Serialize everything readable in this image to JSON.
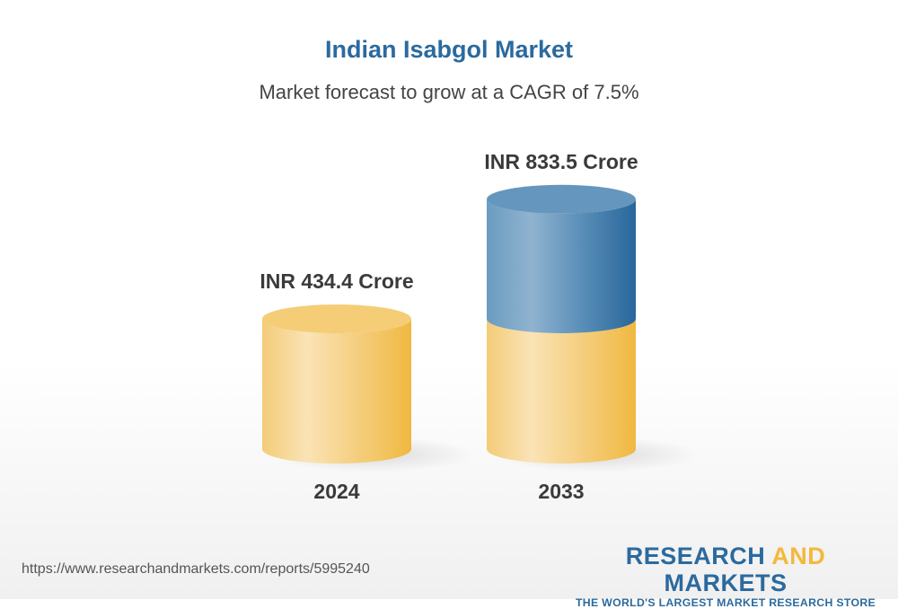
{
  "chart_data": {
    "type": "bar",
    "title": "Indian Isabgol Market",
    "subtitle": "Market forecast to grow at a CAGR of 7.5%",
    "categories": [
      "2024",
      "2033"
    ],
    "values": [
      434.4,
      833.5
    ],
    "data_labels": [
      "INR 434.4 Crore",
      "INR 833.5 Crore"
    ],
    "unit": "INR Crore",
    "style": "3d-cylinder",
    "colors": {
      "base": "#f2c45a",
      "growth": "#2b6a9e"
    }
  },
  "footer": {
    "url": "https://www.researchandmarkets.com/reports/5995240",
    "logo_word1": "RESEARCH",
    "logo_word2": "AND",
    "logo_word3": "MARKETS",
    "logo_tagline": "THE WORLD'S LARGEST MARKET RESEARCH STORE"
  }
}
